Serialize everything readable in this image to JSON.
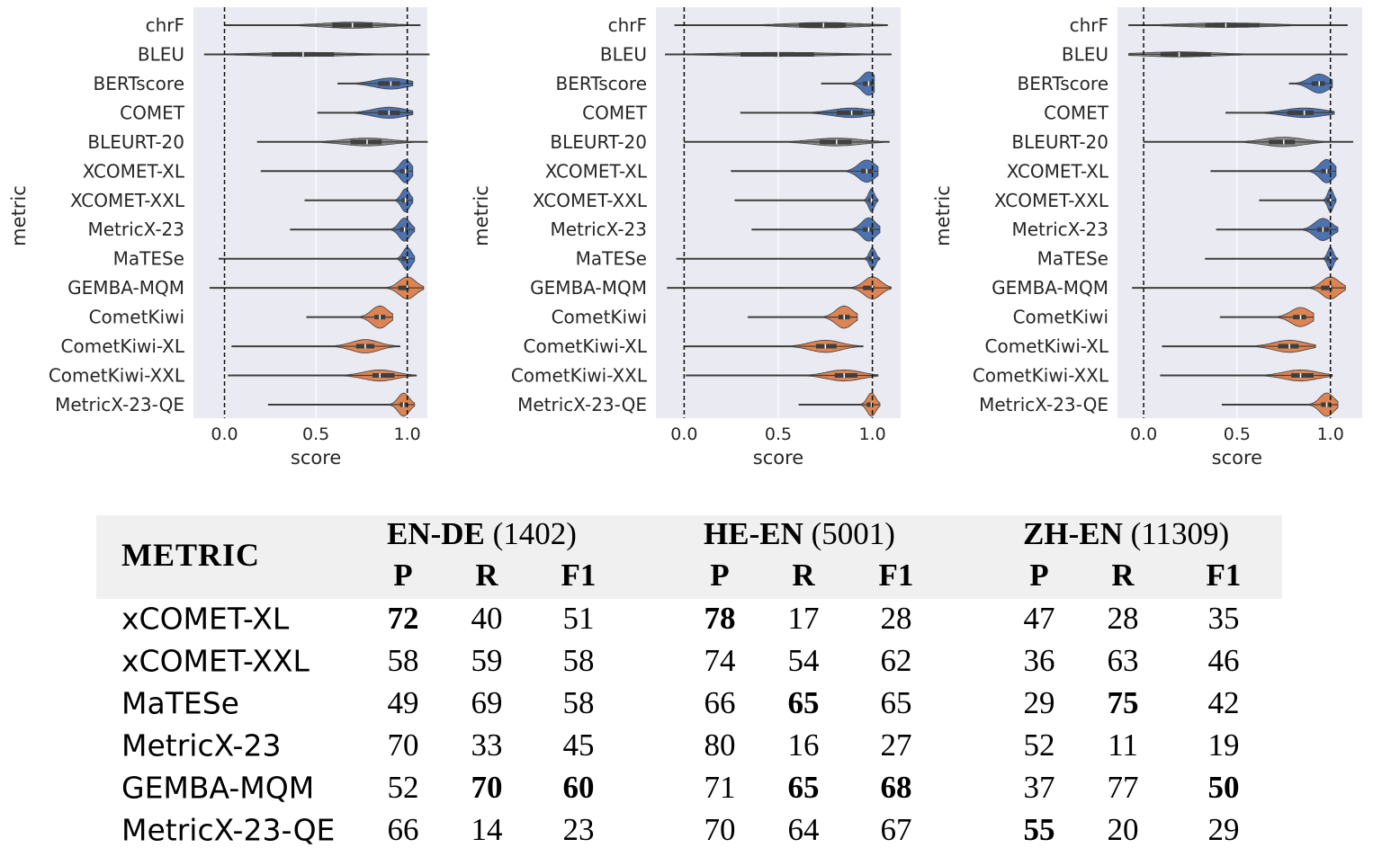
{
  "chart_data": [
    {
      "type": "violin",
      "orientation": "horizontal",
      "xlabel": "score",
      "ylabel": "metric",
      "xlim": [
        -0.17,
        1.11
      ],
      "xticks": [
        "0.0",
        "0.5",
        "1.0"
      ],
      "reference_lines": [
        0.0,
        1.0
      ],
      "grid": true,
      "series": [
        {
          "metric": "chrF",
          "group": "gray",
          "min": 0.0,
          "q1": 0.59,
          "median": 0.7,
          "q3": 0.81,
          "max": 1.07
        },
        {
          "metric": "BLEU",
          "group": "gray",
          "min": -0.11,
          "q1": 0.26,
          "median": 0.43,
          "q3": 0.6,
          "max": 1.12
        },
        {
          "metric": "BERTscore",
          "group": "blue",
          "min": 0.62,
          "q1": 0.84,
          "median": 0.91,
          "q3": 0.96,
          "max": 1.03
        },
        {
          "metric": "COMET",
          "group": "blue",
          "min": 0.51,
          "q1": 0.84,
          "median": 0.9,
          "q3": 0.96,
          "max": 1.03
        },
        {
          "metric": "BLEURT-20",
          "group": "gray",
          "min": 0.18,
          "q1": 0.69,
          "median": 0.78,
          "q3": 0.86,
          "max": 1.11
        },
        {
          "metric": "XCOMET-XL",
          "group": "blue",
          "min": 0.2,
          "q1": 0.96,
          "median": 0.99,
          "q3": 1.0,
          "max": 1.03
        },
        {
          "metric": "XCOMET-XXL",
          "group": "blue",
          "min": 0.44,
          "q1": 0.97,
          "median": 0.99,
          "q3": 1.0,
          "max": 1.03
        },
        {
          "metric": "MetricX-23",
          "group": "blue",
          "min": 0.36,
          "q1": 0.96,
          "median": 0.985,
          "q3": 1.0,
          "max": 1.04
        },
        {
          "metric": "MaTESe",
          "group": "blue",
          "min": -0.03,
          "q1": 0.97,
          "median": 1.0,
          "q3": 1.0,
          "max": 1.04
        },
        {
          "metric": "GEMBA-MQM",
          "group": "orange",
          "min": -0.08,
          "q1": 0.95,
          "median": 1.0,
          "q3": 1.01,
          "max": 1.09
        },
        {
          "metric": "CometKiwi",
          "group": "orange",
          "min": 0.45,
          "q1": 0.82,
          "median": 0.85,
          "q3": 0.88,
          "max": 0.92
        },
        {
          "metric": "CometKiwi-XL",
          "group": "orange",
          "min": 0.04,
          "q1": 0.72,
          "median": 0.77,
          "q3": 0.82,
          "max": 0.96
        },
        {
          "metric": "CometKiwi-XXL",
          "group": "orange",
          "min": 0.02,
          "q1": 0.81,
          "median": 0.85,
          "q3": 0.93,
          "max": 1.05
        },
        {
          "metric": "MetricX-23-QE",
          "group": "orange",
          "min": 0.24,
          "q1": 0.96,
          "median": 0.98,
          "q3": 1.0,
          "max": 1.04
        }
      ]
    },
    {
      "type": "violin",
      "orientation": "horizontal",
      "xlabel": "score",
      "ylabel": "metric",
      "xlim": [
        -0.15,
        1.15
      ],
      "xticks": [
        "0.0",
        "0.5",
        "1.0"
      ],
      "reference_lines": [
        0.0,
        1.0
      ],
      "grid": true,
      "series": [
        {
          "metric": "chrF",
          "group": "gray",
          "min": -0.05,
          "q1": 0.61,
          "median": 0.74,
          "q3": 0.86,
          "max": 1.08
        },
        {
          "metric": "BLEU",
          "group": "gray",
          "min": -0.1,
          "q1": 0.3,
          "median": 0.5,
          "q3": 0.69,
          "max": 1.1
        },
        {
          "metric": "BERTscore",
          "group": "blue",
          "min": 0.73,
          "q1": 0.95,
          "median": 0.98,
          "q3": 1.0,
          "max": 1.01
        },
        {
          "metric": "COMET",
          "group": "blue",
          "min": 0.3,
          "q1": 0.81,
          "median": 0.89,
          "q3": 0.95,
          "max": 1.01
        },
        {
          "metric": "BLEURT-20",
          "group": "gray",
          "min": 0.0,
          "q1": 0.72,
          "median": 0.81,
          "q3": 0.89,
          "max": 1.09
        },
        {
          "metric": "XCOMET-XL",
          "group": "blue",
          "min": 0.25,
          "q1": 0.94,
          "median": 0.97,
          "q3": 1.0,
          "max": 1.03
        },
        {
          "metric": "XCOMET-XXL",
          "group": "blue",
          "min": 0.27,
          "q1": 0.98,
          "median": 0.995,
          "q3": 1.0,
          "max": 1.03
        },
        {
          "metric": "MetricX-23",
          "group": "blue",
          "min": 0.36,
          "q1": 0.95,
          "median": 0.98,
          "q3": 1.0,
          "max": 1.04
        },
        {
          "metric": "MaTESe",
          "group": "blue",
          "min": -0.04,
          "q1": 0.98,
          "median": 1.0,
          "q3": 1.0,
          "max": 1.04
        },
        {
          "metric": "GEMBA-MQM",
          "group": "orange",
          "min": -0.09,
          "q1": 0.95,
          "median": 1.0,
          "q3": 1.01,
          "max": 1.1
        },
        {
          "metric": "CometKiwi",
          "group": "orange",
          "min": 0.34,
          "q1": 0.82,
          "median": 0.85,
          "q3": 0.88,
          "max": 0.92
        },
        {
          "metric": "CometKiwi-XL",
          "group": "orange",
          "min": 0.0,
          "q1": 0.7,
          "median": 0.75,
          "q3": 0.81,
          "max": 0.95
        },
        {
          "metric": "CometKiwi-XXL",
          "group": "orange",
          "min": 0.01,
          "q1": 0.8,
          "median": 0.85,
          "q3": 0.92,
          "max": 1.03
        },
        {
          "metric": "MetricX-23-QE",
          "group": "orange",
          "min": 0.61,
          "q1": 0.97,
          "median": 0.995,
          "q3": 1.0,
          "max": 1.04
        }
      ]
    },
    {
      "type": "violin",
      "orientation": "horizontal",
      "xlabel": "score",
      "ylabel": "metric",
      "xlim": [
        -0.14,
        1.17
      ],
      "xticks": [
        "0.0",
        "0.5",
        "1.0"
      ],
      "reference_lines": [
        0.0,
        1.0
      ],
      "grid": true,
      "series": [
        {
          "metric": "chrF",
          "group": "gray",
          "min": -0.08,
          "q1": 0.33,
          "median": 0.44,
          "q3": 0.62,
          "max": 1.09
        },
        {
          "metric": "BLEU",
          "group": "gray",
          "min": -0.08,
          "q1": 0.09,
          "median": 0.19,
          "q3": 0.36,
          "max": 1.09
        },
        {
          "metric": "BERTscore",
          "group": "blue",
          "min": 0.78,
          "q1": 0.9,
          "median": 0.94,
          "q3": 0.97,
          "max": 1.01
        },
        {
          "metric": "COMET",
          "group": "blue",
          "min": 0.44,
          "q1": 0.77,
          "median": 0.86,
          "q3": 0.91,
          "max": 1.02
        },
        {
          "metric": "BLEURT-20",
          "group": "gray",
          "min": 0.0,
          "q1": 0.67,
          "median": 0.75,
          "q3": 0.81,
          "max": 1.12
        },
        {
          "metric": "XCOMET-XL",
          "group": "blue",
          "min": 0.36,
          "q1": 0.95,
          "median": 0.98,
          "q3": 1.0,
          "max": 1.03
        },
        {
          "metric": "XCOMET-XXL",
          "group": "blue",
          "min": 0.62,
          "q1": 0.98,
          "median": 1.0,
          "q3": 1.0,
          "max": 1.03
        },
        {
          "metric": "MetricX-23",
          "group": "blue",
          "min": 0.39,
          "q1": 0.93,
          "median": 0.96,
          "q3": 0.99,
          "max": 1.04
        },
        {
          "metric": "MaTESe",
          "group": "blue",
          "min": 0.33,
          "q1": 0.98,
          "median": 1.0,
          "q3": 1.0,
          "max": 1.04
        },
        {
          "metric": "GEMBA-MQM",
          "group": "orange",
          "min": -0.06,
          "q1": 0.95,
          "median": 1.0,
          "q3": 1.01,
          "max": 1.08
        },
        {
          "metric": "CometKiwi",
          "group": "orange",
          "min": 0.41,
          "q1": 0.8,
          "median": 0.84,
          "q3": 0.87,
          "max": 0.91
        },
        {
          "metric": "CometKiwi-XL",
          "group": "orange",
          "min": 0.1,
          "q1": 0.72,
          "median": 0.78,
          "q3": 0.83,
          "max": 0.92
        },
        {
          "metric": "CometKiwi-XXL",
          "group": "orange",
          "min": 0.09,
          "q1": 0.79,
          "median": 0.84,
          "q3": 0.91,
          "max": 1.01
        },
        {
          "metric": "MetricX-23-QE",
          "group": "orange",
          "min": 0.42,
          "q1": 0.95,
          "median": 0.98,
          "q3": 1.0,
          "max": 1.04
        }
      ]
    }
  ],
  "colors": {
    "gray": "#8c8c8c",
    "blue": "#4c72b0",
    "orange": "#dd8452",
    "plot_bg": "#eaeaf2",
    "line": "#3f3f3f"
  },
  "table": {
    "metric_header": "METRIC",
    "groups": [
      {
        "name": "EN-DE",
        "count": "(1402)"
      },
      {
        "name": "HE-EN",
        "count": "(5001)"
      },
      {
        "name": "ZH-EN",
        "count": "(11309)"
      }
    ],
    "subheaders": [
      "P",
      "R",
      "F1"
    ],
    "rows": [
      {
        "metric": "xCOMET-XL",
        "values": [
          "72",
          "40",
          "51",
          "78",
          "17",
          "28",
          "47",
          "28",
          "35"
        ],
        "bold": [
          0,
          3
        ]
      },
      {
        "metric": "xCOMET-XXL",
        "values": [
          "58",
          "59",
          "58",
          "74",
          "54",
          "62",
          "36",
          "63",
          "46"
        ],
        "bold": []
      },
      {
        "metric": "MaTESe",
        "values": [
          "49",
          "69",
          "58",
          "66",
          "65",
          "65",
          "29",
          "75",
          "42"
        ],
        "bold": [
          4,
          7
        ]
      },
      {
        "metric": "MetricX-23",
        "values": [
          "70",
          "33",
          "45",
          "80",
          "16",
          "27",
          "52",
          "11",
          "19"
        ],
        "bold": []
      },
      {
        "metric": "GEMBA-MQM",
        "values": [
          "52",
          "70",
          "60",
          "71",
          "65",
          "68",
          "37",
          "77",
          "50"
        ],
        "bold": [
          1,
          2,
          4,
          5,
          8
        ]
      },
      {
        "metric": "MetricX-23-QE",
        "values": [
          "66",
          "14",
          "23",
          "70",
          "64",
          "67",
          "55",
          "20",
          "29"
        ],
        "bold": [
          6
        ]
      }
    ]
  }
}
